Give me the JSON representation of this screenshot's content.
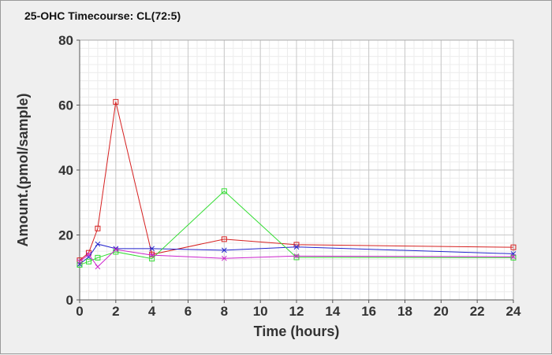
{
  "chart_data": {
    "type": "line",
    "title": "25-OHC Timecourse: CL(72:5)",
    "xlabel": "Time (hours)",
    "ylabel": "Amount.(pmol/sample)",
    "xlim": [
      0,
      24
    ],
    "ylim": [
      0,
      80
    ],
    "x_ticks": [
      0,
      2,
      4,
      6,
      8,
      10,
      12,
      14,
      16,
      18,
      20,
      22,
      24
    ],
    "y_ticks": [
      0,
      20,
      40,
      60,
      80
    ],
    "grid": true,
    "legend": "none",
    "series": [
      {
        "color": "#d62020",
        "marker": "square",
        "x": [
          0,
          0.5,
          1,
          2,
          4,
          8,
          12,
          24
        ],
        "y": [
          12.2,
          14.5,
          22,
          61,
          14,
          18.7,
          17,
          16.2
        ]
      },
      {
        "color": "#2222cc",
        "marker": "x",
        "x": [
          0,
          0.5,
          1,
          2,
          4,
          8,
          12,
          24
        ],
        "y": [
          11,
          13.2,
          17.2,
          15.8,
          15.8,
          15.3,
          16.3,
          14.2
        ]
      },
      {
        "color": "#33dd33",
        "marker": "square",
        "x": [
          0,
          0.5,
          1,
          2,
          4,
          8,
          12,
          24
        ],
        "y": [
          10.8,
          11.8,
          13,
          14.8,
          12.7,
          33.5,
          13.1,
          13
        ]
      },
      {
        "color": "#cc22cc",
        "marker": "x",
        "x": [
          0,
          0.5,
          1,
          2,
          4,
          8,
          12,
          24
        ],
        "y": [
          11.8,
          14,
          10.2,
          15.5,
          13.8,
          12.8,
          13.5,
          13.3
        ]
      }
    ]
  }
}
